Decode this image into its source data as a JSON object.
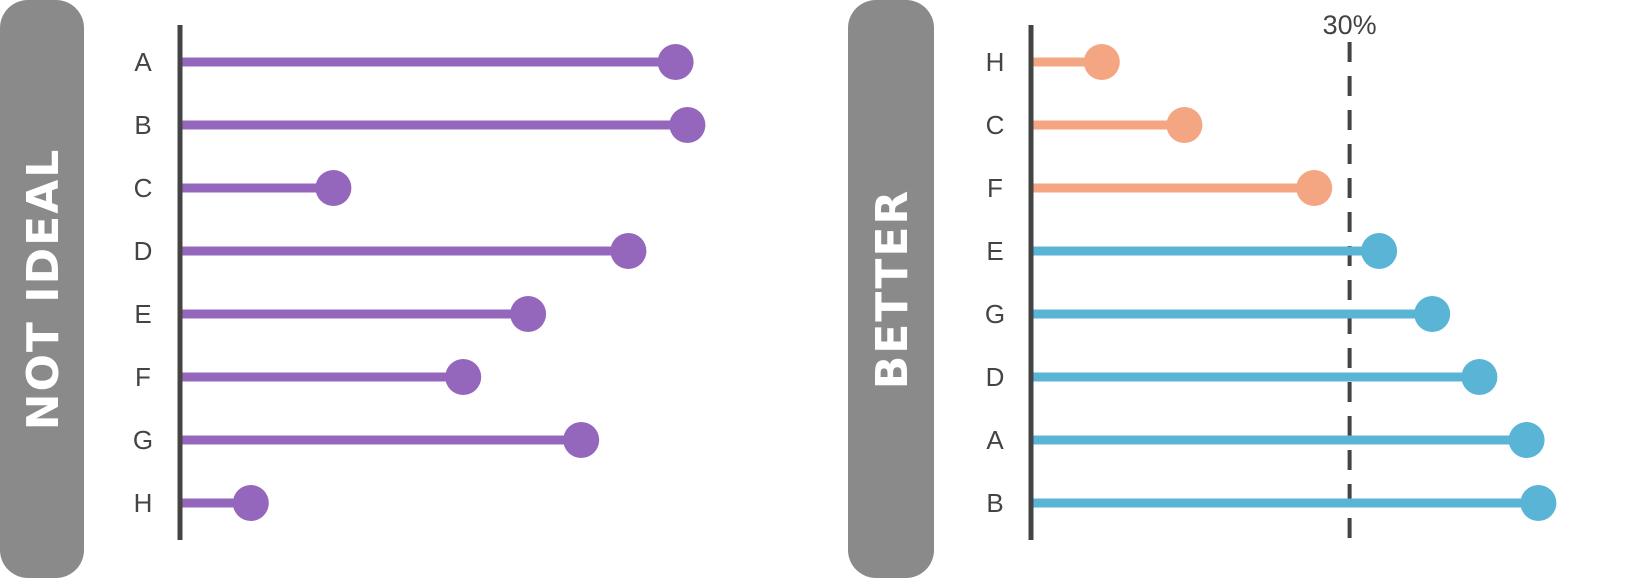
{
  "chart_data": [
    {
      "type": "lollipop",
      "panel_label": "NOT IDEAL",
      "categories": [
        "A",
        "B",
        "C",
        "D",
        "E",
        "F",
        "G",
        "H"
      ],
      "values": [
        84,
        86,
        26,
        76,
        59,
        48,
        68,
        12
      ],
      "xlim": [
        0,
        100
      ],
      "colors": {
        "dot": "#9467bd"
      },
      "grid": false
    },
    {
      "type": "lollipop",
      "panel_label": "BETTER",
      "categories": [
        "H",
        "C",
        "F",
        "E",
        "G",
        "D",
        "A",
        "B"
      ],
      "values": [
        12,
        26,
        48,
        59,
        68,
        76,
        84,
        86
      ],
      "xlim": [
        0,
        100
      ],
      "reference_line": {
        "value": 54,
        "label": "30%"
      },
      "colors": {
        "below": "#f4a582",
        "above": "#5ab4d6"
      },
      "grid": false
    }
  ],
  "colors": {
    "panel_bg": "#8a8a8a",
    "axis": "#444444"
  }
}
